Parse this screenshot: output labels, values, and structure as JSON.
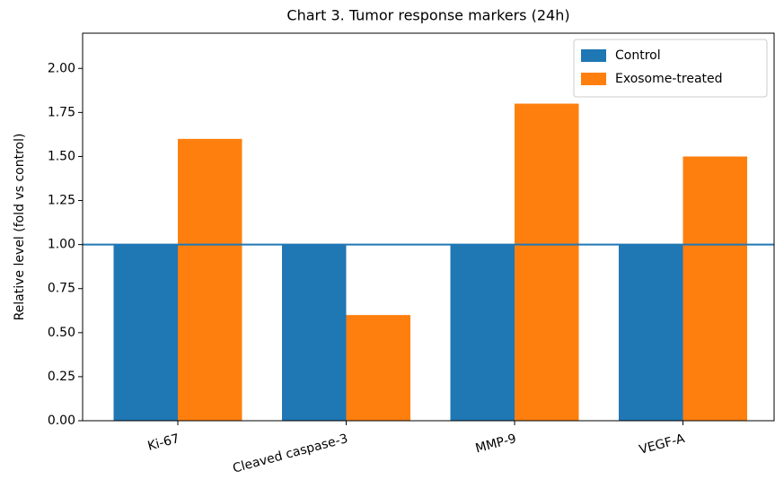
{
  "chart_data": {
    "type": "bar",
    "title": "Chart 3. Tumor response markers (24h)",
    "y_label": "Relative level (fold vs control)",
    "categories": [
      "Ki-67",
      "Cleaved caspase-3",
      "MMP-9",
      "VEGF-A"
    ],
    "series": [
      {
        "name": "Control",
        "color": "#1f77b4",
        "values": [
          1.0,
          1.0,
          1.0,
          1.0
        ]
      },
      {
        "name": "Exosome-treated",
        "color": "#ff7f0e",
        "values": [
          1.6,
          0.6,
          1.8,
          1.5
        ]
      }
    ],
    "ylim": [
      0,
      2.2
    ],
    "yticks": [
      {
        "value": 0,
        "label": "0.00"
      },
      {
        "value": 0.25,
        "label": "0.25"
      },
      {
        "value": 0.5,
        "label": "0.50"
      },
      {
        "value": 0.75,
        "label": "0.75"
      },
      {
        "value": 1.0,
        "label": "1.00"
      },
      {
        "value": 1.25,
        "label": "1.25"
      },
      {
        "value": 1.5,
        "label": "1.50"
      },
      {
        "value": 1.75,
        "label": "1.75"
      },
      {
        "value": 2.0,
        "label": "2.00"
      }
    ],
    "reference_line": {
      "value": 1.0,
      "color": "#1f77b4"
    },
    "legend": "upper right",
    "grid": false
  }
}
